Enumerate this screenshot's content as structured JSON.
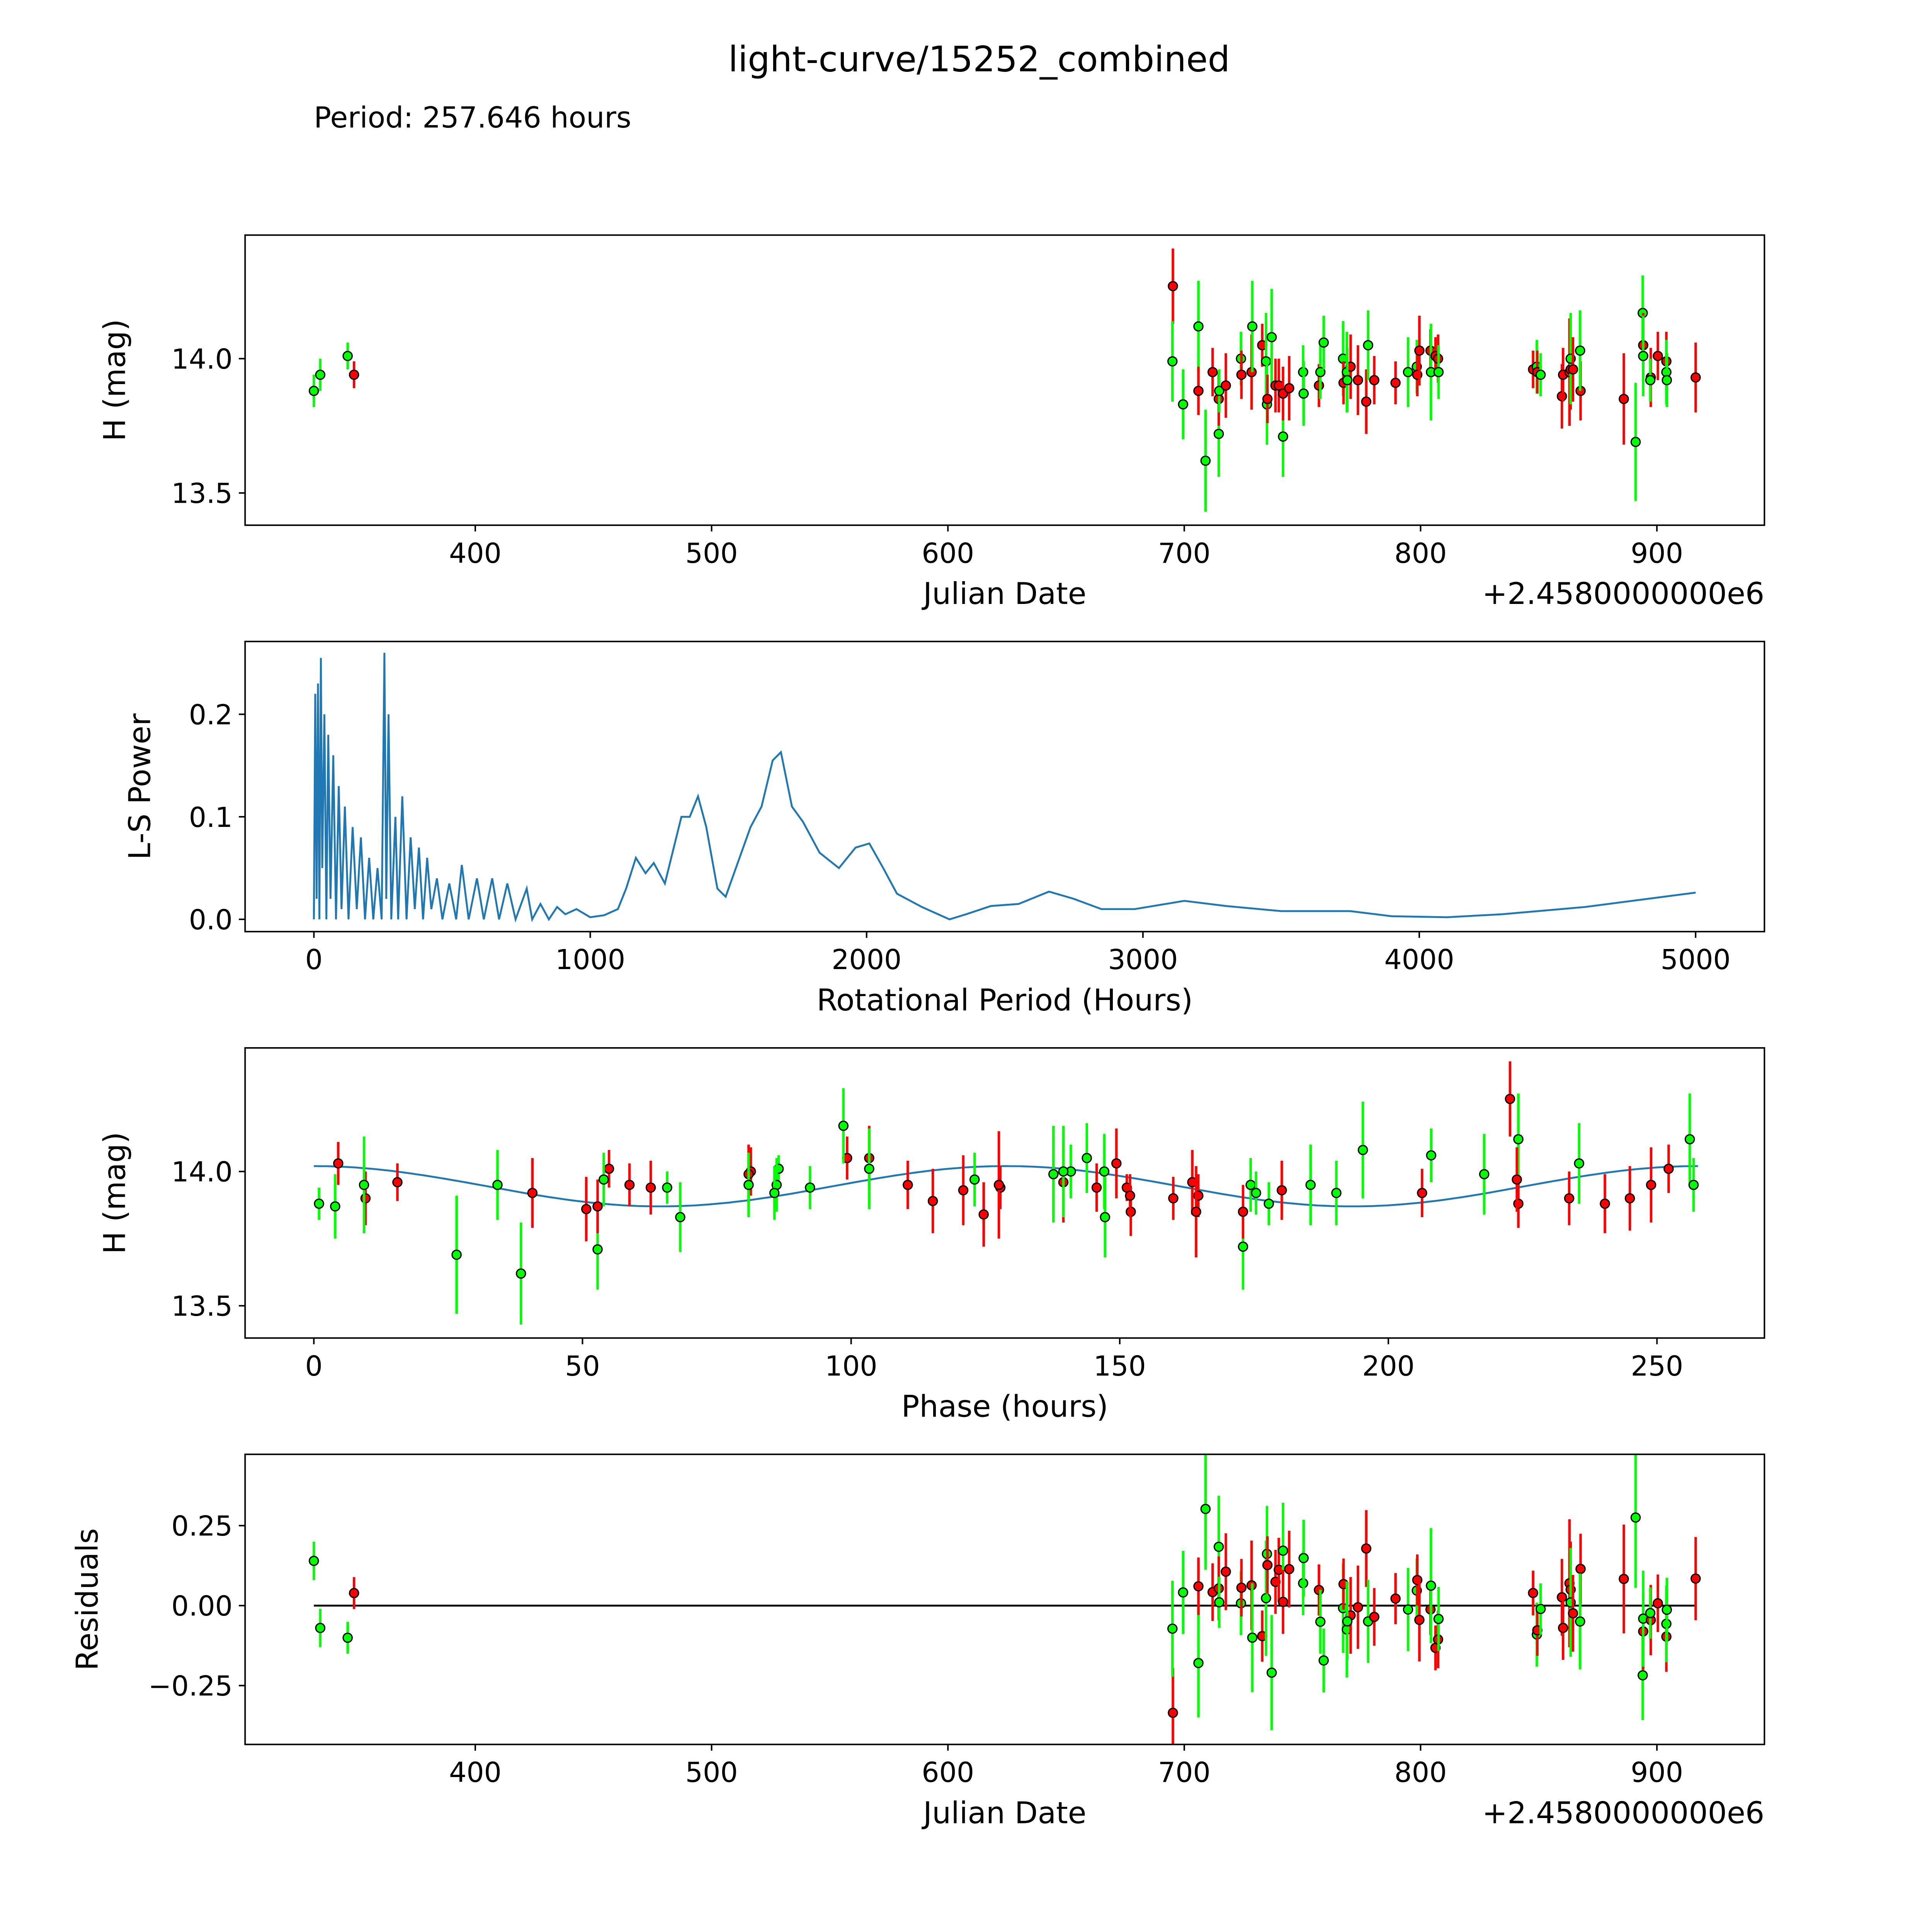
{
  "title": "light-curve/15252_combined",
  "period_label": "Period: 257.646 hours",
  "colors": {
    "g": "#00ff00",
    "r": "#ff0000",
    "line": "#1f77b4",
    "zero": "#000000"
  },
  "chart_data": [
    {
      "type": "scatter",
      "xlabel": "Julian Date",
      "ylabel": "H (mag)",
      "offset_text": "+2.4580000000e6",
      "xlim": [
        302.6,
        945.5
      ],
      "ylim": [
        13.38,
        14.46
      ],
      "xticks": [
        400,
        500,
        600,
        700,
        800,
        900
      ],
      "xticklabels": [
        "400",
        "500",
        "600",
        "700",
        "800",
        "900"
      ],
      "yticks": [
        13.5,
        14.0
      ],
      "yticklabels": [
        "13.5",
        "14.0"
      ],
      "points": [
        [
          331.7,
          13.88,
          0.06,
          "g"
        ],
        [
          334.4,
          13.94,
          0.06,
          "g"
        ],
        [
          346.0,
          14.01,
          0.05,
          "g"
        ],
        [
          348.7,
          13.94,
          0.05,
          "r"
        ],
        [
          695.2,
          14.27,
          0.14,
          "r"
        ],
        [
          695.0,
          13.99,
          0.15,
          "g"
        ],
        [
          699.5,
          13.83,
          0.13,
          "g"
        ],
        [
          706.0,
          14.12,
          0.17,
          "g"
        ],
        [
          706.0,
          13.88,
          0.09,
          "r"
        ],
        [
          709.0,
          13.62,
          0.19,
          "g"
        ],
        [
          712.0,
          13.95,
          0.09,
          "r"
        ],
        [
          714.6,
          13.72,
          0.16,
          "g"
        ],
        [
          714.6,
          13.85,
          0.1,
          "r"
        ],
        [
          714.8,
          13.88,
          0.08,
          "g"
        ],
        [
          717.6,
          13.9,
          0.12,
          "r"
        ],
        [
          724.0,
          14.0,
          0.1,
          "g"
        ],
        [
          724.2,
          13.94,
          0.09,
          "r"
        ],
        [
          728.5,
          13.95,
          0.14,
          "r"
        ],
        [
          728.8,
          14.12,
          0.17,
          "g"
        ],
        [
          733.0,
          14.05,
          0.08,
          "r"
        ],
        [
          734.6,
          13.99,
          0.18,
          "g"
        ],
        [
          735.0,
          13.83,
          0.15,
          "g"
        ],
        [
          735.2,
          13.85,
          0.09,
          "r"
        ],
        [
          737.0,
          14.08,
          0.18,
          "g"
        ],
        [
          738.6,
          13.9,
          0.1,
          "r"
        ],
        [
          740.0,
          13.9,
          0.1,
          "r"
        ],
        [
          741.8,
          13.71,
          0.15,
          "g"
        ],
        [
          741.8,
          13.87,
          0.1,
          "r"
        ],
        [
          744.4,
          13.89,
          0.12,
          "r"
        ],
        [
          750.3,
          13.95,
          0.1,
          "g"
        ],
        [
          750.5,
          13.87,
          0.12,
          "g"
        ],
        [
          757.0,
          13.9,
          0.08,
          "r"
        ],
        [
          757.6,
          13.95,
          0.1,
          "g"
        ],
        [
          759.0,
          14.06,
          0.1,
          "g"
        ],
        [
          767.2,
          14.0,
          0.14,
          "g"
        ],
        [
          767.4,
          13.91,
          0.08,
          "r"
        ],
        [
          768.8,
          13.95,
          0.15,
          "g"
        ],
        [
          770.4,
          13.97,
          0.12,
          "r"
        ],
        [
          769.0,
          13.92,
          0.12,
          "g"
        ],
        [
          773.5,
          13.92,
          0.13,
          "r"
        ],
        [
          777.0,
          13.84,
          0.12,
          "r"
        ],
        [
          777.8,
          14.05,
          0.13,
          "g"
        ],
        [
          780.4,
          13.92,
          0.09,
          "r"
        ],
        [
          789.4,
          13.91,
          0.08,
          "r"
        ],
        [
          794.7,
          13.95,
          0.13,
          "g"
        ],
        [
          798.4,
          13.97,
          0.1,
          "g"
        ],
        [
          798.6,
          13.94,
          0.08,
          "r"
        ],
        [
          799.5,
          14.03,
          0.13,
          "r"
        ],
        [
          804.2,
          14.03,
          0.08,
          "r"
        ],
        [
          804.4,
          13.95,
          0.18,
          "g"
        ],
        [
          806.3,
          14.01,
          0.07,
          "r"
        ],
        [
          807.4,
          14.0,
          0.09,
          "r"
        ],
        [
          807.6,
          13.95,
          0.1,
          "g"
        ],
        [
          847.6,
          13.96,
          0.07,
          "r"
        ],
        [
          849.2,
          13.97,
          0.1,
          "g"
        ],
        [
          849.4,
          13.95,
          0.08,
          "r"
        ],
        [
          850.8,
          13.94,
          0.08,
          "g"
        ],
        [
          859.8,
          13.86,
          0.12,
          "r"
        ],
        [
          860.3,
          13.94,
          0.1,
          "r"
        ],
        [
          863.0,
          13.95,
          0.2,
          "r"
        ],
        [
          863.5,
          13.96,
          0.15,
          "r"
        ],
        [
          863.5,
          14.0,
          0.17,
          "g"
        ],
        [
          864.5,
          13.96,
          0.12,
          "r"
        ],
        [
          867.7,
          13.88,
          0.11,
          "r"
        ],
        [
          867.5,
          14.03,
          0.15,
          "g"
        ],
        [
          886.0,
          13.85,
          0.17,
          "r"
        ],
        [
          891.0,
          13.69,
          0.22,
          "g"
        ],
        [
          894.0,
          14.17,
          0.14,
          "g"
        ],
        [
          894.2,
          14.05,
          0.12,
          "r"
        ],
        [
          894.2,
          14.01,
          0.15,
          "g"
        ],
        [
          897.4,
          13.93,
          0.11,
          "r"
        ],
        [
          897.2,
          13.92,
          0.08,
          "g"
        ],
        [
          900.4,
          14.01,
          0.09,
          "r"
        ],
        [
          904.0,
          13.99,
          0.11,
          "r"
        ],
        [
          904.0,
          13.95,
          0.12,
          "g"
        ],
        [
          904.2,
          13.92,
          0.1,
          "g"
        ],
        [
          916.4,
          13.93,
          0.13,
          "r"
        ]
      ]
    },
    {
      "type": "line",
      "xlabel": "Rotational Period (Hours)",
      "ylabel": "L-S Power",
      "xlim": [
        -249,
        5249
      ],
      "ylim": [
        -0.012,
        0.271
      ],
      "xticks": [
        0,
        1000,
        2000,
        3000,
        4000,
        5000
      ],
      "xticklabels": [
        "0",
        "1000",
        "2000",
        "3000",
        "4000",
        "5000"
      ],
      "yticks": [
        0.0,
        0.1,
        0.2
      ],
      "yticklabels": [
        "0.0",
        "0.1",
        "0.2"
      ],
      "x": [
        0,
        5,
        10,
        15,
        20,
        25,
        30,
        38,
        45,
        52,
        60,
        70,
        80,
        90,
        100,
        112,
        125,
        140,
        155,
        170,
        185,
        200,
        215,
        230,
        245,
        255,
        262,
        270,
        280,
        295,
        305,
        320,
        335,
        350,
        365,
        380,
        395,
        410,
        425,
        445,
        465,
        490,
        515,
        535,
        560,
        590,
        615,
        645,
        670,
        700,
        730,
        770,
        790,
        820,
        850,
        880,
        910,
        950,
        1000,
        1050,
        1100,
        1130,
        1165,
        1200,
        1230,
        1270,
        1330,
        1360,
        1390,
        1420,
        1460,
        1490,
        1540,
        1580,
        1620,
        1660,
        1690,
        1730,
        1770,
        1830,
        1900,
        1960,
        2010,
        2060,
        2110,
        2200,
        2300,
        2360,
        2450,
        2550,
        2660,
        2750,
        2850,
        2970,
        3150,
        3300,
        3500,
        3750,
        3900,
        4100,
        4300,
        4600,
        5000
      ],
      "y": [
        0,
        0.22,
        0.02,
        0.23,
        0,
        0.255,
        0.05,
        0.2,
        0,
        0.18,
        0.02,
        0.16,
        0,
        0.13,
        0.01,
        0.11,
        0,
        0.09,
        0.01,
        0.08,
        0,
        0.06,
        0,
        0.05,
        0,
        0.26,
        0.02,
        0.2,
        0,
        0.1,
        0,
        0.12,
        0,
        0.08,
        0.01,
        0.07,
        0,
        0.06,
        0.01,
        0.04,
        0,
        0.035,
        0,
        0.053,
        0,
        0.04,
        0,
        0.04,
        0,
        0.035,
        0,
        0.03,
        0,
        0.015,
        0,
        0.012,
        0.005,
        0.01,
        0.002,
        0.004,
        0.01,
        0.03,
        0.06,
        0.045,
        0.055,
        0.035,
        0.1,
        0.1,
        0.12,
        0.09,
        0.03,
        0.022,
        0.06,
        0.09,
        0.11,
        0.155,
        0.163,
        0.11,
        0.095,
        0.065,
        0.05,
        0.07,
        0.074,
        0.05,
        0.025,
        0.012,
        0,
        0.005,
        0.013,
        0.015,
        0.027,
        0.02,
        0.01,
        0.01,
        0.018,
        0.013,
        0.008,
        0.008,
        0.003,
        0.002,
        0.005,
        0.012,
        0.026
      ]
    },
    {
      "type": "scatter",
      "xlabel": "Phase (hours)",
      "ylabel": "H (mag)",
      "xlim": [
        -12.8,
        270
      ],
      "ylim": [
        13.38,
        14.46
      ],
      "xticks": [
        0,
        50,
        100,
        150,
        200,
        250
      ],
      "xticklabels": [
        "0",
        "50",
        "100",
        "150",
        "200",
        "250"
      ],
      "yticks": [
        13.5,
        14.0
      ],
      "yticklabels": [
        "13.5",
        "14.0"
      ],
      "period_hours": 257.646,
      "model": {
        "mean": 13.945,
        "amplitude": 0.075,
        "harmonics": 2,
        "epoch_jd": 331.66
      }
    },
    {
      "type": "scatter",
      "xlabel": "Julian Date",
      "ylabel": "Residuals",
      "offset_text": "+2.4580000000e6",
      "xlim": [
        302.6,
        945.5
      ],
      "ylim": [
        -0.434,
        0.473
      ],
      "xticks": [
        400,
        500,
        600,
        700,
        800,
        900
      ],
      "xticklabels": [
        "400",
        "500",
        "600",
        "700",
        "800",
        "900"
      ],
      "yticks": [
        -0.25,
        0.0,
        0.25
      ],
      "yticklabels": [
        "−0.25",
        "0.00",
        "0.25"
      ]
    }
  ]
}
